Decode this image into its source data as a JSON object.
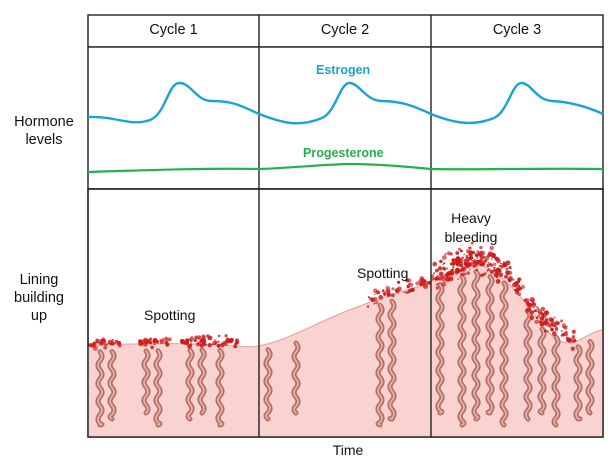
{
  "columns": [
    {
      "title": "Cycle 1"
    },
    {
      "title": "Cycle 2"
    },
    {
      "title": "Cycle 3"
    }
  ],
  "row_labels": {
    "hormone": [
      "Hormone",
      "levels"
    ],
    "lining": [
      "Lining",
      "building",
      "up"
    ]
  },
  "hormones": {
    "estrogen": {
      "label": "Estrogen",
      "color": "#1aa3d6"
    },
    "progesterone": {
      "label": "Progesterone",
      "color": "#22b24c"
    }
  },
  "annotations": {
    "spotting_1": "Spotting",
    "spotting_2": "Spotting",
    "heavy_bleeding": [
      "Heavy",
      "bleeding"
    ]
  },
  "axis": {
    "xlabel": "Time"
  },
  "colors": {
    "lining_fill": "#f9d3cf",
    "lining_edge": "#e8a9a2",
    "gland": "#a85a52",
    "bleeding": "#cc1a1a",
    "frame": "#222222"
  }
}
